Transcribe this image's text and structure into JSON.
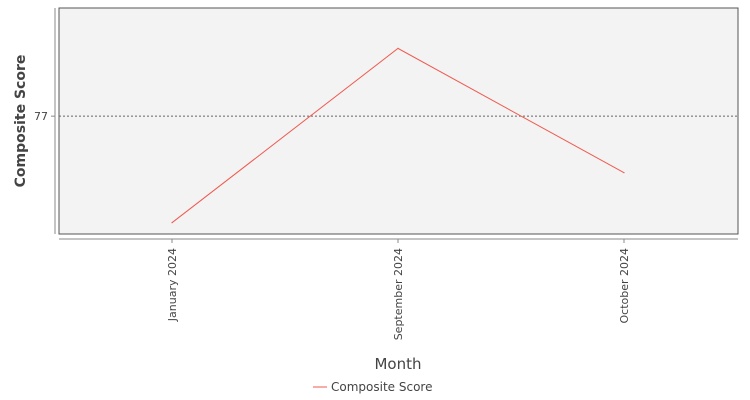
{
  "chart_data": {
    "type": "line",
    "title": "",
    "xlabel": "Month",
    "ylabel": "Composite Score",
    "categories": [
      "January 2024",
      "September 2024",
      "October 2024"
    ],
    "series": [
      {
        "name": "Composite Score",
        "color": "#f05a50",
        "values": [
          70.4,
          81.2,
          73.5
        ]
      }
    ],
    "ylim": [
      69.7,
      83.7
    ],
    "yticks": [
      {
        "value": 77,
        "label": "77",
        "gridline": "dotted"
      }
    ],
    "grid": false,
    "plot_background": "#f3f3f3",
    "legend": {
      "position": "bottom",
      "entries": [
        "Composite Score"
      ]
    }
  }
}
